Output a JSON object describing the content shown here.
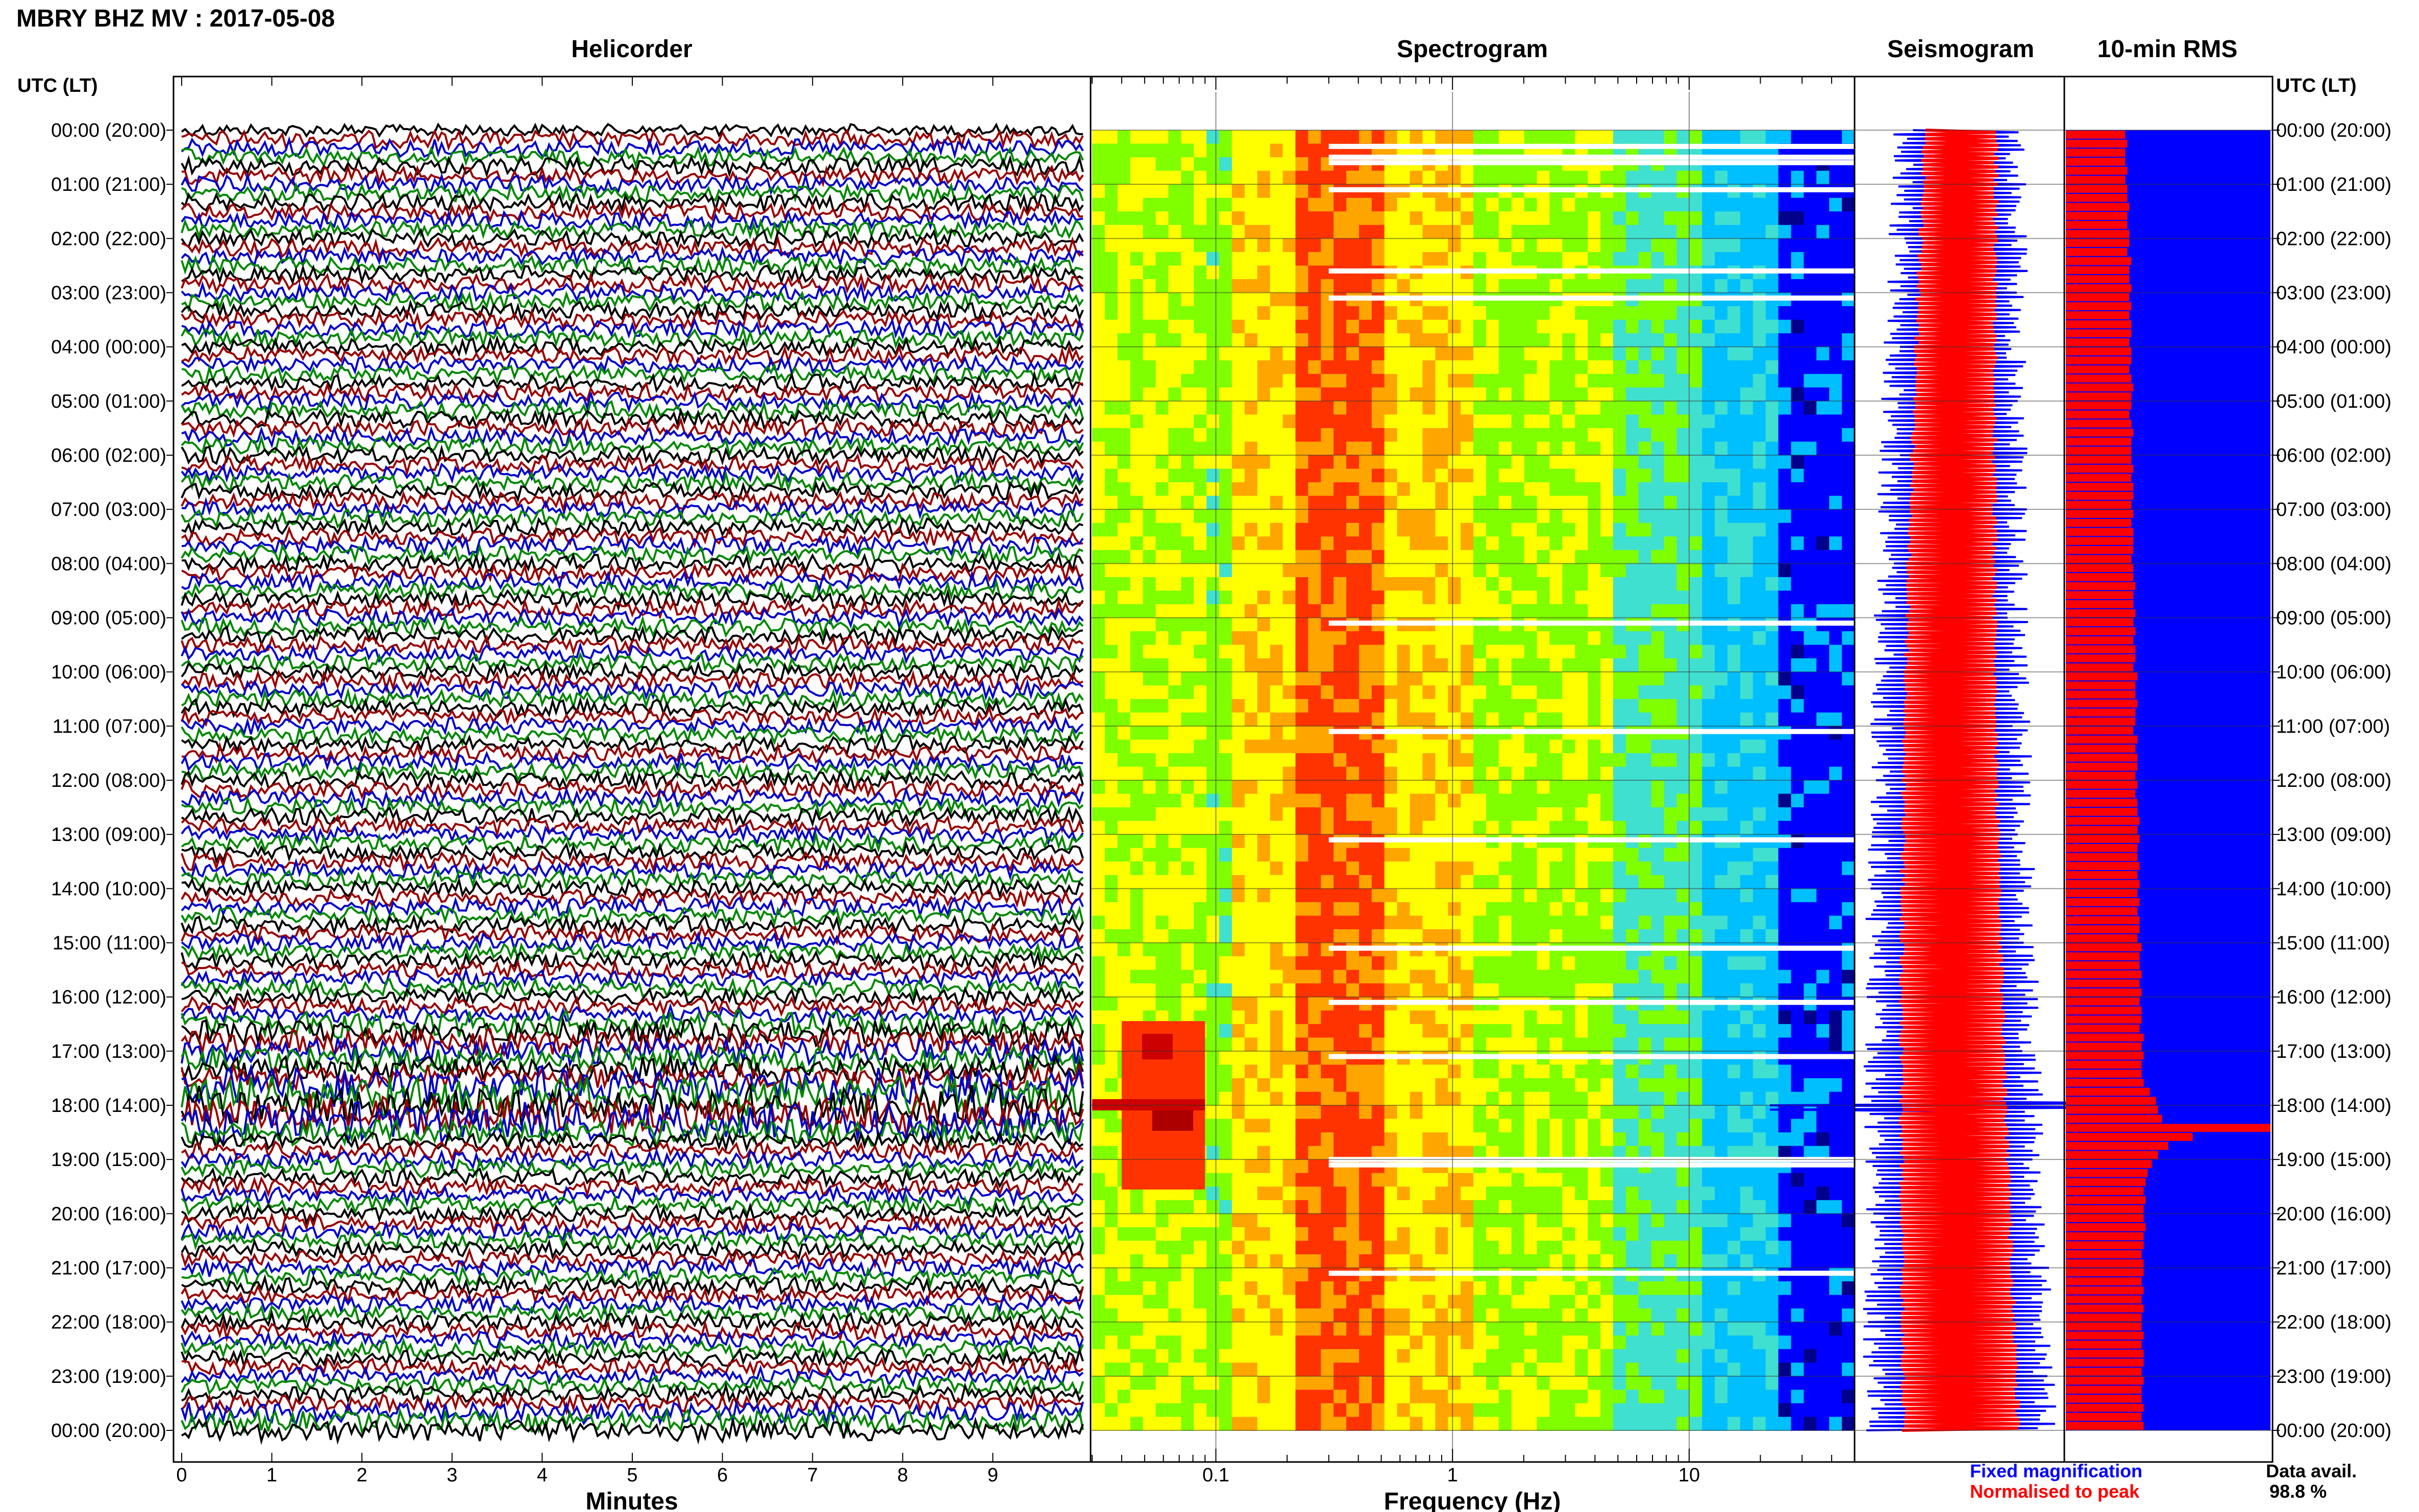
{
  "page": {
    "title": "MBRY BHZ MV : 2017-05-08"
  },
  "legend": {
    "fixed": "Fixed magnification",
    "fixed_color": "#0000ff",
    "normalised": "Normalised to peak",
    "normalised_color": "#ff0000",
    "avail_label": "Data avail.",
    "avail_value": "98.8 %"
  },
  "chart_data": [
    {
      "type": "line",
      "title": "Helicorder",
      "xlabel": "Minutes",
      "ylabel": "UTC (LT)",
      "xlim": [
        0,
        10
      ],
      "x_ticks": [
        "0",
        "1",
        "2",
        "3",
        "4",
        "5",
        "6",
        "7",
        "8",
        "9"
      ],
      "y_tick_labels": [
        "00:00 (20:00)",
        "01:00 (21:00)",
        "02:00 (22:00)",
        "03:00 (23:00)",
        "04:00 (00:00)",
        "05:00 (01:00)",
        "06:00 (02:00)",
        "07:00 (03:00)",
        "08:00 (04:00)",
        "09:00 (05:00)",
        "10:00 (06:00)",
        "11:00 (07:00)",
        "12:00 (08:00)",
        "13:00 (09:00)",
        "14:00 (10:00)",
        "15:00 (11:00)",
        "16:00 (12:00)",
        "17:00 (13:00)",
        "18:00 (14:00)",
        "19:00 (15:00)",
        "20:00 (16:00)",
        "21:00 (17:00)",
        "22:00 (18:00)",
        "23:00 (19:00)",
        "00:00 (20:00)"
      ],
      "trace_colors": [
        "#000000",
        "#990000",
        "#0000cc",
        "#008800"
      ],
      "traces_per_hour": 6,
      "high_activity_hours": [
        17,
        18
      ]
    },
    {
      "type": "heatmap",
      "title": "Spectrogram",
      "xlabel": "Frequency (Hz)",
      "x_scale": "log",
      "xlim": [
        0.03,
        50
      ],
      "x_tick_labels": [
        "0.1",
        "1",
        "10"
      ],
      "colormap": [
        "#00008b",
        "#0000ff",
        "#00bfff",
        "#40e0d0",
        "#7fff00",
        "#ffff00",
        "#ffa500",
        "#ff3300",
        "#cc0000"
      ],
      "peak_band_hz": [
        0.25,
        0.5
      ],
      "event": {
        "hour": 18,
        "freq_hz": [
          0.04,
          0.09
        ]
      },
      "gap_hours": [
        0.3,
        0.5,
        0.6,
        1.1,
        2.6,
        3.1,
        9.1,
        11.1,
        13.1,
        15.1,
        16.1,
        17.1,
        19.0,
        19.1,
        21.1
      ]
    },
    {
      "type": "line",
      "title": "Seismogram",
      "series": [
        {
          "name": "Fixed magnification",
          "color": "#0000ff"
        },
        {
          "name": "Normalised to peak",
          "color": "#ff0000"
        }
      ],
      "spike_hour": 18
    },
    {
      "type": "bar",
      "title": "10-min RMS",
      "ylabel": "UTC (LT)",
      "bins": 144,
      "series": [
        {
          "name": "Fixed magnification",
          "color": "#0000ff",
          "values": "full width"
        },
        {
          "name": "Normalised to peak",
          "color": "#ff0000"
        }
      ],
      "normalised_values": [
        0.29,
        0.3,
        0.29,
        0.29,
        0.3,
        0.29,
        0.3,
        0.3,
        0.31,
        0.3,
        0.3,
        0.31,
        0.31,
        0.3,
        0.32,
        0.31,
        0.31,
        0.32,
        0.31,
        0.32,
        0.31,
        0.32,
        0.32,
        0.31,
        0.32,
        0.32,
        0.31,
        0.32,
        0.33,
        0.32,
        0.32,
        0.31,
        0.32,
        0.33,
        0.32,
        0.32,
        0.32,
        0.33,
        0.32,
        0.33,
        0.33,
        0.32,
        0.33,
        0.32,
        0.33,
        0.33,
        0.33,
        0.32,
        0.33,
        0.33,
        0.34,
        0.33,
        0.33,
        0.34,
        0.33,
        0.34,
        0.33,
        0.34,
        0.34,
        0.33,
        0.35,
        0.34,
        0.34,
        0.35,
        0.34,
        0.34,
        0.33,
        0.35,
        0.34,
        0.35,
        0.35,
        0.34,
        0.35,
        0.34,
        0.35,
        0.35,
        0.36,
        0.35,
        0.36,
        0.35,
        0.35,
        0.36,
        0.35,
        0.36,
        0.35,
        0.36,
        0.35,
        0.36,
        0.36,
        0.35,
        0.37,
        0.36,
        0.36,
        0.37,
        0.36,
        0.37,
        0.36,
        0.37,
        0.37,
        0.36,
        0.38,
        0.37,
        0.38,
        0.37,
        0.37,
        0.38,
        0.41,
        0.44,
        0.45,
        0.47,
        1.0,
        0.62,
        0.5,
        0.45,
        0.42,
        0.4,
        0.39,
        0.38,
        0.39,
        0.38,
        0.38,
        0.39,
        0.38,
        0.38,
        0.37,
        0.38,
        0.38,
        0.37,
        0.38,
        0.37,
        0.38,
        0.37,
        0.37,
        0.38,
        0.37,
        0.38,
        0.38,
        0.37,
        0.38,
        0.37,
        0.37,
        0.38,
        0.37,
        0.38
      ]
    }
  ]
}
